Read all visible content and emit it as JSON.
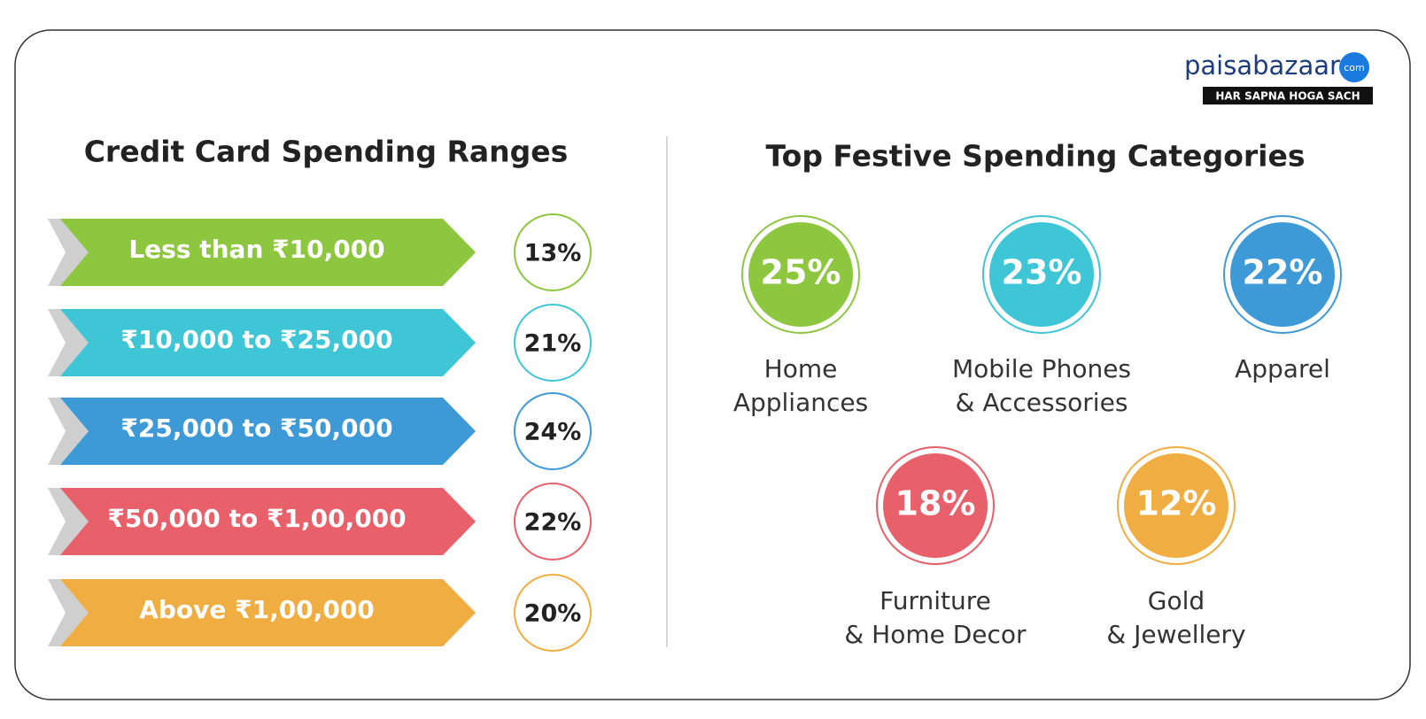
{
  "logo": {
    "name": "paisabazaar",
    "suffix": "com",
    "tagline": "HAR SAPNA HOGA SACH"
  },
  "left": {
    "title": "Credit Card Spending Ranges",
    "rows": [
      {
        "label": "Less than ₹10,000",
        "share": "13%",
        "color": "#8dc63f"
      },
      {
        "label": "₹10,000 to ₹25,000",
        "share": "21%",
        "color": "#3ec6d6"
      },
      {
        "label": "₹25,000 to ₹50,000",
        "share": "24%",
        "color": "#3d9ad6"
      },
      {
        "label": "₹50,000 to ₹1,00,000",
        "share": "22%",
        "color": "#e8606a"
      },
      {
        "label": "Above ₹1,00,000",
        "share": "20%",
        "color": "#f0ad42"
      }
    ]
  },
  "right": {
    "title": "Top Festive Spending Categories",
    "items": [
      {
        "share": "25%",
        "lines": [
          "Home",
          "Appliances"
        ],
        "color": "#8dc63f"
      },
      {
        "share": "23%",
        "lines": [
          "Mobile Phones",
          "& Accessories"
        ],
        "color": "#3ec6d6"
      },
      {
        "share": "22%",
        "lines": [
          "Apparel"
        ],
        "color": "#3d9ad6"
      },
      {
        "share": "18%",
        "lines": [
          "Furniture",
          "& Home Decor"
        ],
        "color": "#e8606a"
      },
      {
        "share": "12%",
        "lines": [
          "Gold",
          "& Jewellery"
        ],
        "color": "#f0ad42"
      }
    ]
  }
}
